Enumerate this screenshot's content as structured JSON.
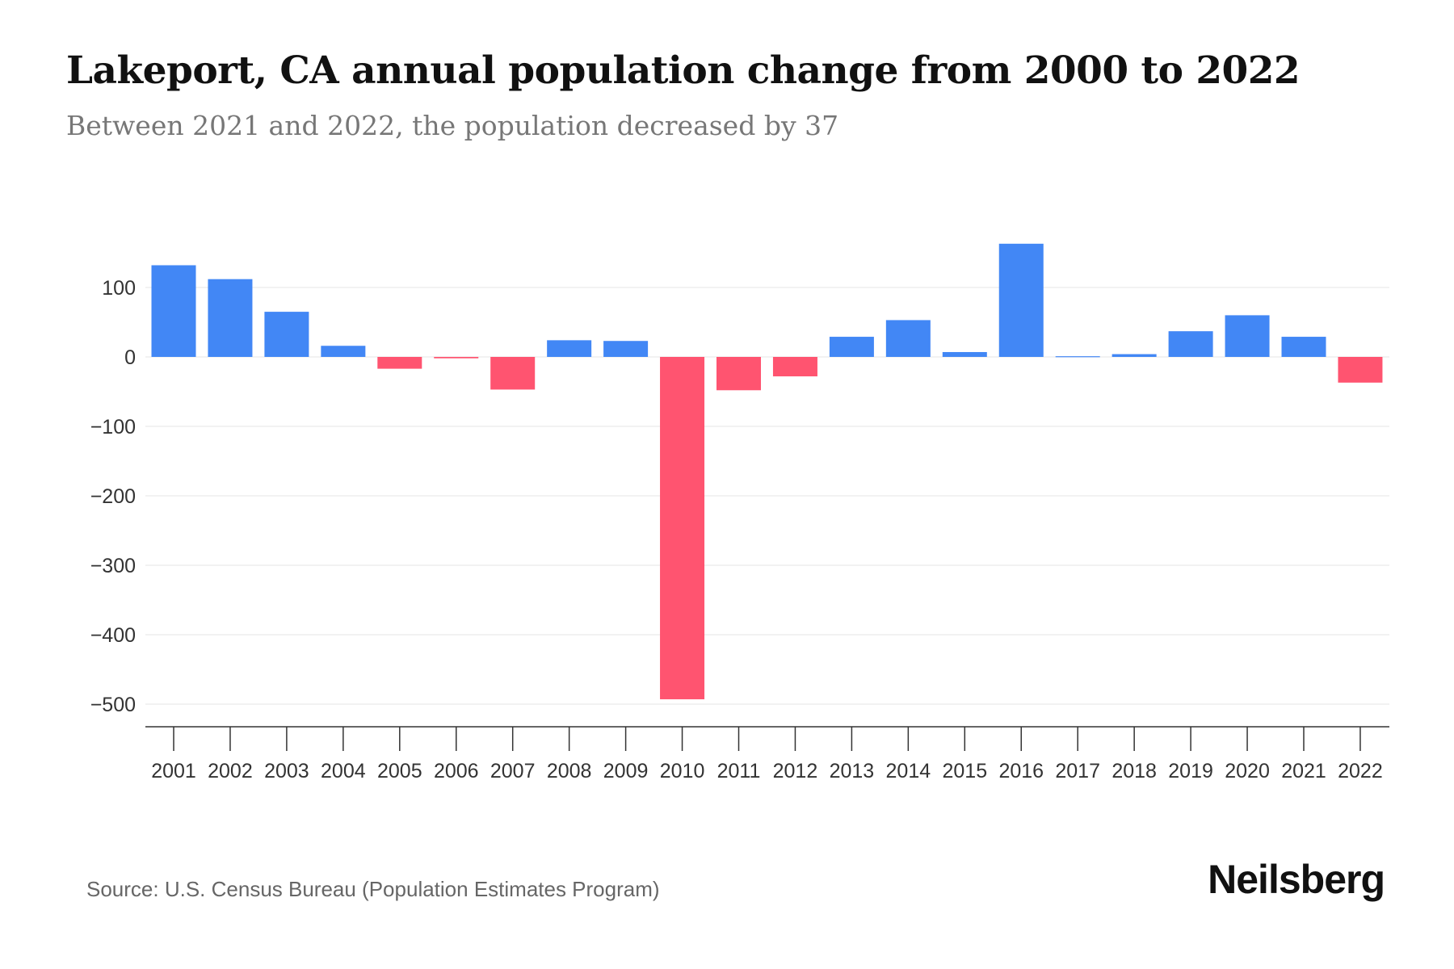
{
  "chart_data": {
    "type": "bar",
    "title": "Lakeport, CA annual population change from 2000 to 2022",
    "subtitle": "Between 2021 and 2022, the population decreased by 37",
    "xlabel": "",
    "ylabel": "",
    "categories": [
      "2001",
      "2002",
      "2003",
      "2004",
      "2005",
      "2006",
      "2007",
      "2008",
      "2009",
      "2010",
      "2011",
      "2012",
      "2013",
      "2014",
      "2015",
      "2016",
      "2017",
      "2018",
      "2019",
      "2020",
      "2021",
      "2022"
    ],
    "values": [
      132,
      112,
      65,
      16,
      -17,
      -2,
      -47,
      24,
      23,
      -493,
      -48,
      -28,
      29,
      53,
      7,
      163,
      1,
      4,
      37,
      60,
      29,
      -37
    ],
    "ylim": [
      -530,
      175
    ],
    "yticks": [
      100,
      0,
      -100,
      -200,
      -300,
      -400,
      -500
    ],
    "ytick_labels": [
      "100",
      "0",
      "−100",
      "−200",
      "−300",
      "−400",
      "−500"
    ],
    "grid": true,
    "colors": {
      "positive": "#4287f5",
      "negative": "#ff5470"
    }
  },
  "source": "Source: U.S. Census Bureau (Population Estimates Program)",
  "logo": "Neilsberg"
}
